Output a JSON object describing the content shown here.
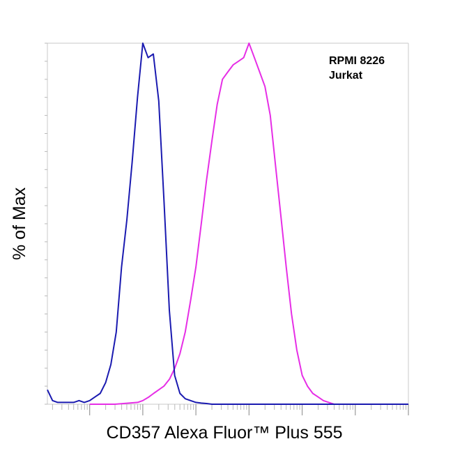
{
  "chart_data": {
    "type": "line",
    "xlabel": "CD357 Alexa Fluor™ Plus 555",
    "ylabel": "% of Max",
    "xscale": "log",
    "xlim": [
      0.16,
      1000000
    ],
    "ylim": [
      0,
      100
    ],
    "grid": false,
    "legend_position": "top-right",
    "series": [
      {
        "name": "RPMI 8226",
        "color": "#e62ee6",
        "x": [
          1,
          3,
          8,
          10,
          13,
          16,
          20,
          25,
          32,
          40,
          50,
          63,
          80,
          100,
          126,
          158,
          200,
          251,
          316,
          398,
          501,
          631,
          794,
          1000,
          1259,
          1585,
          1995,
          2512,
          3162,
          3981,
          5012,
          6310,
          7943,
          10000,
          12589,
          15849,
          19953,
          25119,
          31623,
          39811,
          50119,
          100000,
          1000000
        ],
        "y": [
          0,
          0,
          0.5,
          1,
          2,
          3,
          4,
          5,
          7,
          10,
          14,
          20,
          29,
          38,
          50,
          62,
          73,
          83,
          90,
          92,
          94,
          95,
          96,
          100,
          96,
          92,
          88,
          80,
          66,
          52,
          38,
          25,
          15,
          8,
          5,
          3,
          2,
          1,
          0.5,
          0,
          0,
          0,
          0
        ]
      },
      {
        "name": "Jurkat",
        "color": "#1a1ab0",
        "x": [
          0.16,
          0.2,
          0.25,
          0.32,
          0.4,
          0.5,
          0.63,
          0.79,
          1,
          1.26,
          1.58,
          2,
          2.51,
          3.16,
          3.98,
          5.01,
          6.31,
          7.94,
          10,
          12.6,
          15.8,
          20,
          25.1,
          31.6,
          39.8,
          50.1,
          63.1,
          79.4,
          100,
          126,
          158,
          200,
          251,
          316,
          398,
          501,
          1000,
          10000,
          100000,
          1000000
        ],
        "y": [
          4,
          1,
          0.5,
          0.5,
          0.5,
          0.5,
          1,
          0.5,
          1,
          2,
          3,
          6,
          11,
          20,
          38,
          51,
          67,
          85,
          100,
          96,
          97,
          84,
          56,
          26,
          8,
          3,
          1.5,
          1,
          0.5,
          0.3,
          0.2,
          0,
          0,
          0,
          0,
          0,
          0,
          0,
          0,
          0
        ]
      }
    ]
  }
}
